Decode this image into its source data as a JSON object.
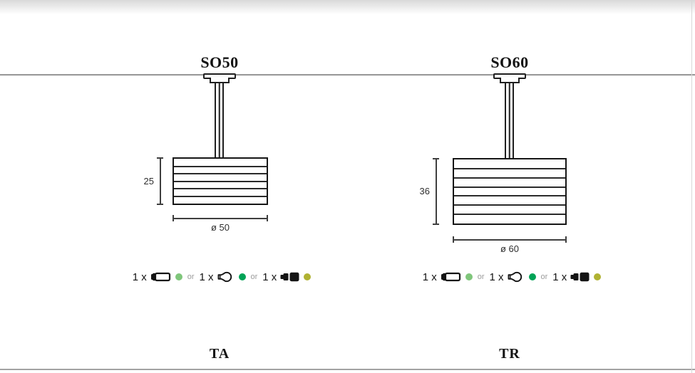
{
  "models": [
    {
      "name": "SO50",
      "height_dim": "25",
      "diameter_dim": "ø 50",
      "type_code": "TA",
      "slats": 5,
      "lamp_options": [
        {
          "qty": "1 x",
          "icon": "linear-halogen-lamp-icon",
          "dot_color": "#7fc67b"
        },
        {
          "qty": "1 x",
          "icon": "incandescent-bulb-icon",
          "dot_color": "#00a356",
          "separator": "or"
        },
        {
          "qty": "1 x",
          "icon": "halogen-spot-lamp-icon",
          "dot_color": "#b0b232",
          "separator": "or"
        }
      ]
    },
    {
      "name": "SO60",
      "height_dim": "36",
      "diameter_dim": "ø 60",
      "type_code": "TR",
      "slats": 6,
      "lamp_options": [
        {
          "qty": "1 x",
          "icon": "linear-halogen-lamp-icon",
          "dot_color": "#7fc67b"
        },
        {
          "qty": "1 x",
          "icon": "incandescent-bulb-icon",
          "dot_color": "#00a356",
          "separator": "or"
        },
        {
          "qty": "1 x",
          "icon": "halogen-spot-lamp-icon",
          "dot_color": "#b0b232",
          "separator": "or"
        }
      ]
    }
  ],
  "colors": {
    "drawing_line": "#1f1f1f",
    "ceiling_line": "#9a9a9a",
    "dimension_line": "#3f3f3f",
    "or_text": "#9c9c9c"
  }
}
